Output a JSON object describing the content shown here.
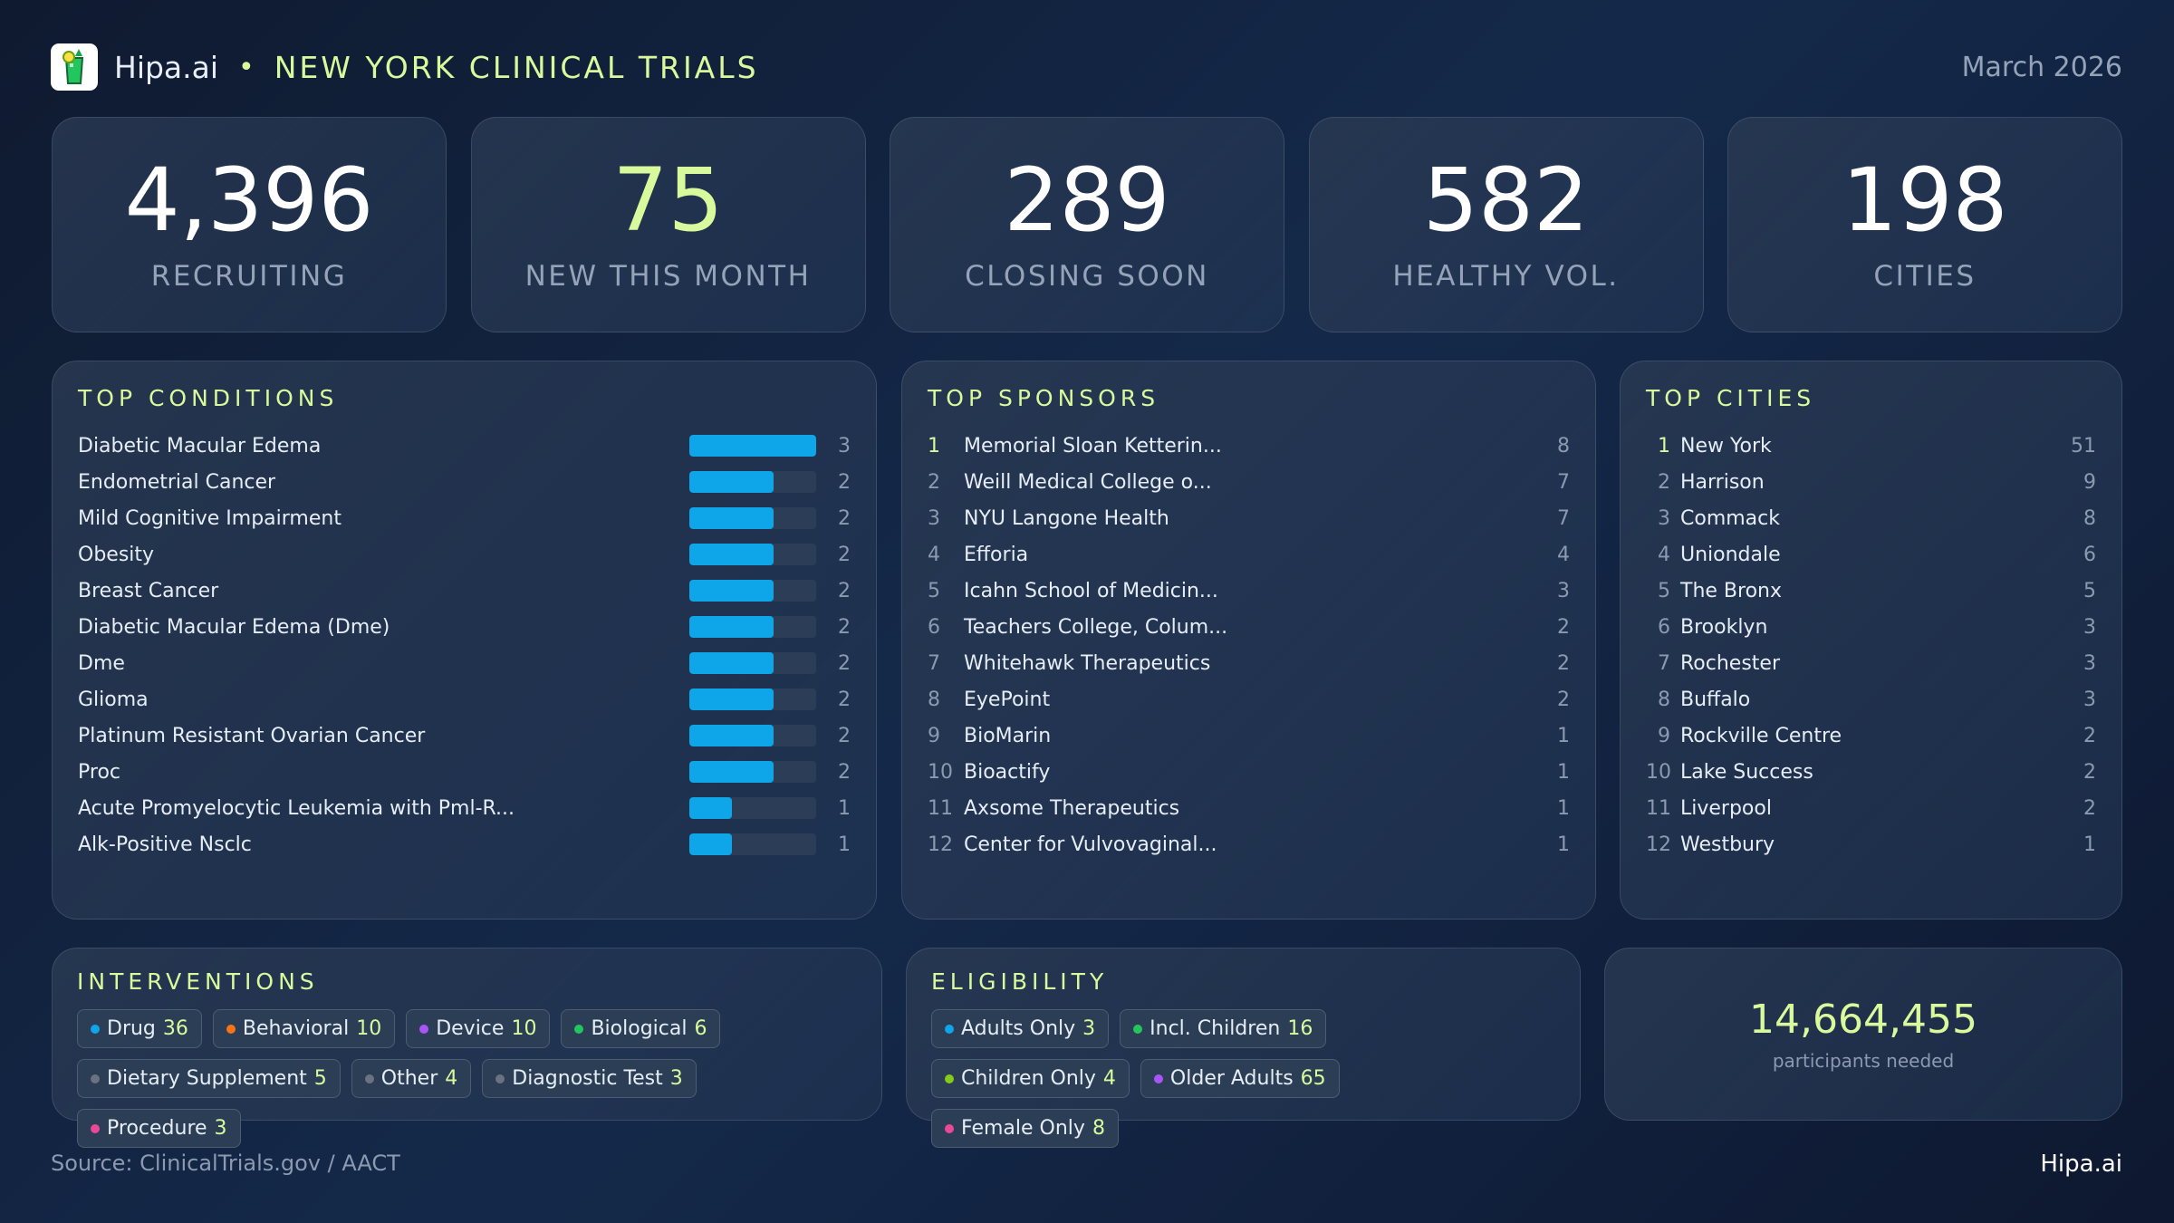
{
  "header": {
    "brand": "Hipa.ai",
    "separator": "•",
    "title": "NEW YORK CLINICAL TRIALS",
    "date": "March 2026",
    "logo_icon": "cocktail-glass-icon"
  },
  "stats": [
    {
      "value": "4,396",
      "label": "RECRUITING",
      "color": "#ffffff"
    },
    {
      "value": "75",
      "label": "NEW THIS MONTH",
      "color": "#d9f99d"
    },
    {
      "value": "289",
      "label": "CLOSING SOON",
      "color": "#ffffff"
    },
    {
      "value": "582",
      "label": "HEALTHY VOL.",
      "color": "#ffffff"
    },
    {
      "value": "198",
      "label": "CITIES",
      "color": "#ffffff"
    }
  ],
  "conditions": {
    "title": "TOP CONDITIONS",
    "bar_color": "#0ea5e9",
    "items": [
      {
        "name": "Diabetic Macular Edema",
        "count": 3
      },
      {
        "name": "Endometrial Cancer",
        "count": 2
      },
      {
        "name": "Mild Cognitive Impairment",
        "count": 2
      },
      {
        "name": "Obesity",
        "count": 2
      },
      {
        "name": "Breast Cancer",
        "count": 2
      },
      {
        "name": "Diabetic Macular Edema (Dme)",
        "count": 2
      },
      {
        "name": "Dme",
        "count": 2
      },
      {
        "name": "Glioma",
        "count": 2
      },
      {
        "name": "Platinum Resistant Ovarian Cancer",
        "count": 2
      },
      {
        "name": "Proc",
        "count": 2
      },
      {
        "name": "Acute Promyelocytic Leukemia with Pml-R...",
        "count": 1
      },
      {
        "name": "Alk-Positive Nsclc",
        "count": 1
      }
    ]
  },
  "sponsors": {
    "title": "TOP SPONSORS",
    "items": [
      {
        "rank": "1",
        "name": "Memorial Sloan Ketterin...",
        "count": "8"
      },
      {
        "rank": "2",
        "name": "Weill Medical College o...",
        "count": "7"
      },
      {
        "rank": "3",
        "name": "NYU Langone Health",
        "count": "7"
      },
      {
        "rank": "4",
        "name": "Efforia",
        "count": "4"
      },
      {
        "rank": "5",
        "name": "Icahn School of Medicin...",
        "count": "3"
      },
      {
        "rank": "6",
        "name": "Teachers College, Colum...",
        "count": "2"
      },
      {
        "rank": "7",
        "name": "Whitehawk Therapeutics",
        "count": "2"
      },
      {
        "rank": "8",
        "name": "EyePoint",
        "count": "2"
      },
      {
        "rank": "9",
        "name": "BioMarin",
        "count": "1"
      },
      {
        "rank": "10",
        "name": "Bioactify",
        "count": "1"
      },
      {
        "rank": "11",
        "name": "Axsome Therapeutics",
        "count": "1"
      },
      {
        "rank": "12",
        "name": "Center for Vulvovaginal...",
        "count": "1"
      }
    ]
  },
  "cities": {
    "title": "TOP CITIES",
    "items": [
      {
        "rank": "1",
        "name": "New York",
        "count": "51"
      },
      {
        "rank": "2",
        "name": "Harrison",
        "count": "9"
      },
      {
        "rank": "3",
        "name": "Commack",
        "count": "8"
      },
      {
        "rank": "4",
        "name": "Uniondale",
        "count": "6"
      },
      {
        "rank": "5",
        "name": "The Bronx",
        "count": "5"
      },
      {
        "rank": "6",
        "name": "Brooklyn",
        "count": "3"
      },
      {
        "rank": "7",
        "name": "Rochester",
        "count": "3"
      },
      {
        "rank": "8",
        "name": "Buffalo",
        "count": "3"
      },
      {
        "rank": "9",
        "name": "Rockville Centre",
        "count": "2"
      },
      {
        "rank": "10",
        "name": "Lake Success",
        "count": "2"
      },
      {
        "rank": "11",
        "name": "Liverpool",
        "count": "2"
      },
      {
        "rank": "12",
        "name": "Westbury",
        "count": "1"
      }
    ]
  },
  "interventions": {
    "title": "INTERVENTIONS",
    "items": [
      {
        "label": "Drug",
        "value": "36",
        "color": "#0ea5e9"
      },
      {
        "label": "Behavioral",
        "value": "10",
        "color": "#f97316"
      },
      {
        "label": "Device",
        "value": "10",
        "color": "#a855f7"
      },
      {
        "label": "Biological",
        "value": "6",
        "color": "#22c55e"
      },
      {
        "label": "Dietary Supplement",
        "value": "5",
        "color": "#6b7280"
      },
      {
        "label": "Other",
        "value": "4",
        "color": "#6b7280"
      },
      {
        "label": "Diagnostic Test",
        "value": "3",
        "color": "#6b7280"
      },
      {
        "label": "Procedure",
        "value": "3",
        "color": "#ec4899"
      }
    ]
  },
  "eligibility": {
    "title": "ELIGIBILITY",
    "items": [
      {
        "label": "Adults Only",
        "value": "3",
        "color": "#0ea5e9"
      },
      {
        "label": "Incl. Children",
        "value": "16",
        "color": "#22c55e"
      },
      {
        "label": "Children Only",
        "value": "4",
        "color": "#84cc16"
      },
      {
        "label": "Older Adults",
        "value": "65",
        "color": "#a855f7"
      },
      {
        "label": "Female Only",
        "value": "8",
        "color": "#ec4899"
      }
    ]
  },
  "participants": {
    "value": "14,664,455",
    "label": "participants needed"
  },
  "footer": {
    "source": "Source: ClinicalTrials.gov / AACT",
    "brand": "Hipa.ai"
  }
}
